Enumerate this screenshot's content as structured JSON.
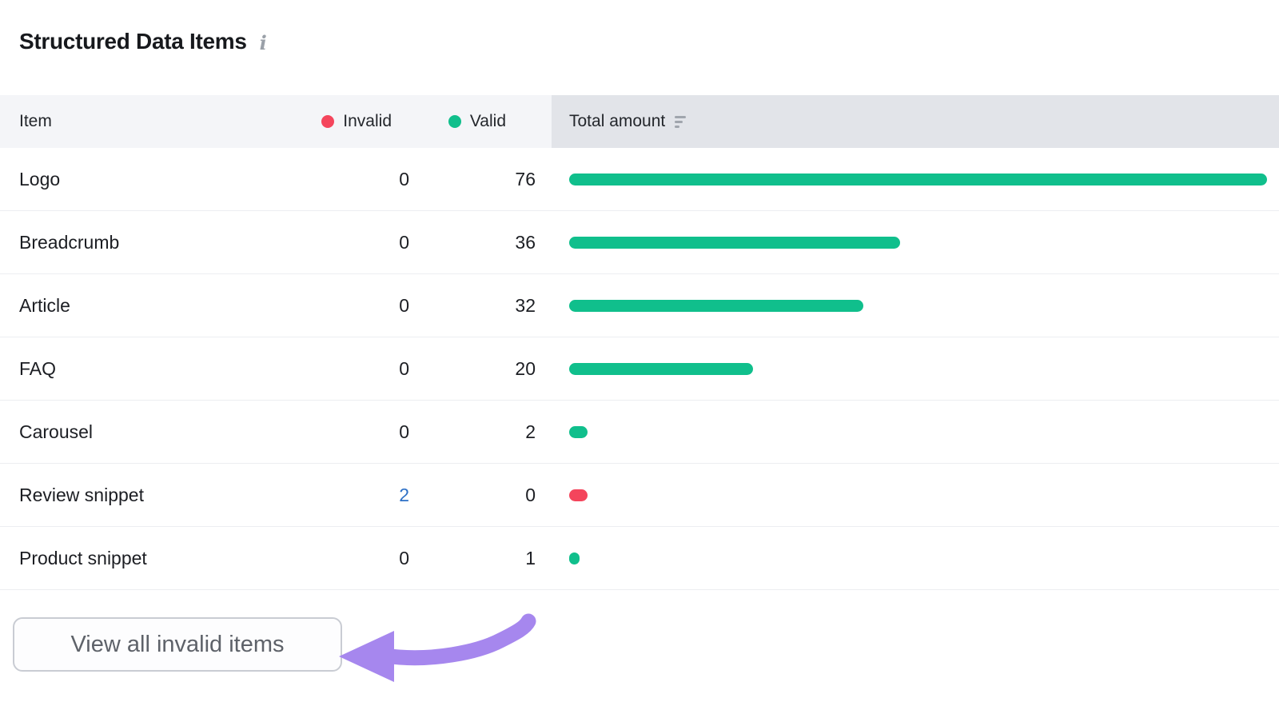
{
  "title": "Structured Data Items",
  "icons": {
    "info_glyph": "i"
  },
  "table": {
    "columns": {
      "item": "Item",
      "invalid": "Invalid",
      "valid": "Valid",
      "total": "Total amount"
    },
    "bar_max": 76,
    "rows": [
      {
        "item": "Logo",
        "invalid": "0",
        "valid": "76",
        "total": 76,
        "bar_color": "green",
        "invalid_is_link": false
      },
      {
        "item": "Breadcrumb",
        "invalid": "0",
        "valid": "36",
        "total": 36,
        "bar_color": "green",
        "invalid_is_link": false
      },
      {
        "item": "Article",
        "invalid": "0",
        "valid": "32",
        "total": 32,
        "bar_color": "green",
        "invalid_is_link": false
      },
      {
        "item": "FAQ",
        "invalid": "0",
        "valid": "20",
        "total": 20,
        "bar_color": "green",
        "invalid_is_link": false
      },
      {
        "item": "Carousel",
        "invalid": "0",
        "valid": "2",
        "total": 2,
        "bar_color": "green",
        "invalid_is_link": false
      },
      {
        "item": "Review snippet",
        "invalid": "2",
        "valid": "0",
        "total": 2,
        "bar_color": "red",
        "invalid_is_link": true
      },
      {
        "item": "Product snippet",
        "invalid": "0",
        "valid": "1",
        "total": 1,
        "bar_color": "green",
        "invalid_is_link": false
      }
    ]
  },
  "button": {
    "label": "View all invalid items"
  },
  "colors": {
    "valid_green": "#10bf8c",
    "invalid_red": "#f4455c",
    "link_blue": "#2d70c6",
    "annotation_purple": "#a687ee",
    "header_bg_left": "#f4f5f8",
    "header_bg_right": "#e2e4e9"
  },
  "chart_data": {
    "type": "bar",
    "orientation": "horizontal",
    "categories": [
      "Logo",
      "Breadcrumb",
      "Article",
      "FAQ",
      "Carousel",
      "Review snippet",
      "Product snippet"
    ],
    "series": [
      {
        "name": "Invalid",
        "values": [
          0,
          0,
          0,
          0,
          0,
          2,
          0
        ]
      },
      {
        "name": "Valid",
        "values": [
          76,
          36,
          32,
          20,
          2,
          0,
          1
        ]
      }
    ],
    "title": "Structured Data Items",
    "xlabel": "Total amount",
    "ylabel": "Item",
    "xlim": [
      0,
      76
    ],
    "grid": false,
    "legend_position": "header-row"
  }
}
